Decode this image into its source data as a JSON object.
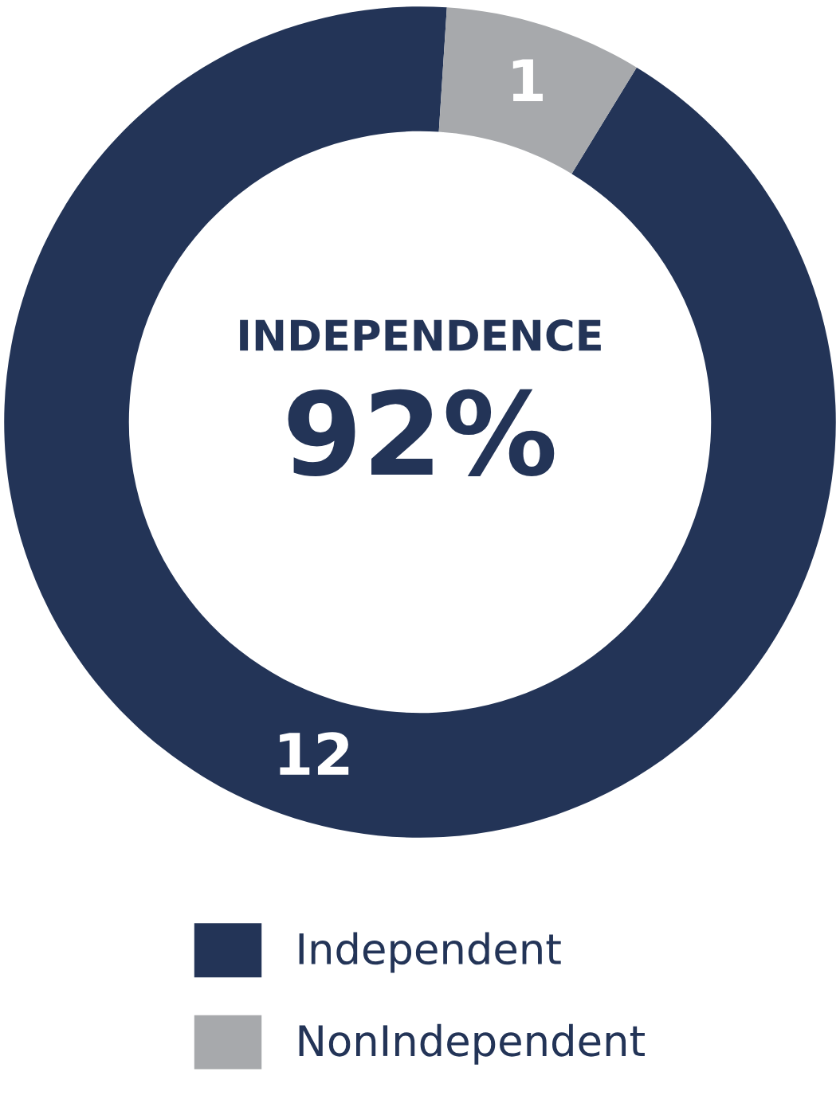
{
  "chart_data": {
    "type": "donut",
    "categories": [
      "Independent",
      "NonIndependent"
    ],
    "values": [
      12,
      1
    ],
    "colors": [
      "#233457",
      "#a7a9ac"
    ],
    "data_labels": true,
    "annotations": [
      "INDEPENDENCE",
      "92%"
    ],
    "legend": "bottom"
  }
}
